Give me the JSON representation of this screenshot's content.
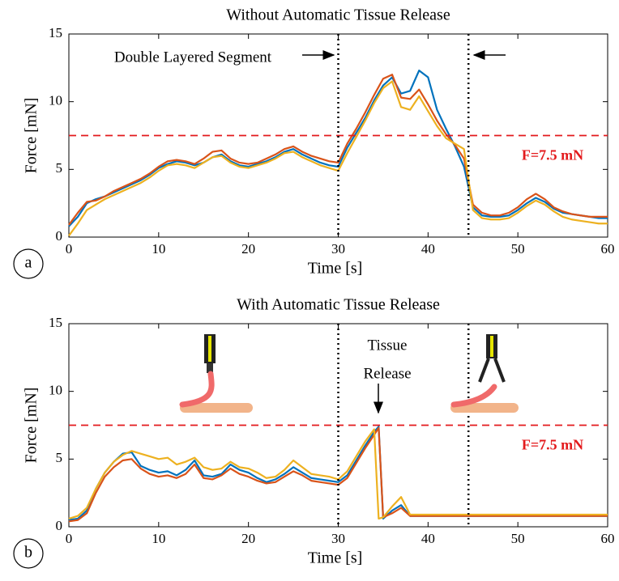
{
  "chart_data": [
    {
      "type": "line",
      "title": "Without Automatic Tissue Release",
      "panel_label": "a",
      "xlabel": "Time [s]",
      "ylabel": "Force [mN]",
      "x": [
        0,
        1,
        2,
        3,
        4,
        5,
        6,
        7,
        8,
        9,
        10,
        11,
        12,
        13,
        14,
        15,
        16,
        17,
        18,
        19,
        20,
        21,
        22,
        23,
        24,
        25,
        26,
        27,
        28,
        29,
        30,
        31,
        32,
        33,
        34,
        35,
        36,
        37,
        38,
        39,
        40,
        41,
        42,
        43,
        44,
        45,
        46,
        47,
        48,
        49,
        50,
        51,
        52,
        53,
        54,
        55,
        56,
        57,
        58,
        59,
        60
      ],
      "series": [
        {
          "color": "#0072bd",
          "values": [
            0.8,
            1.5,
            2.5,
            2.8,
            3.0,
            3.3,
            3.6,
            3.9,
            4.2,
            4.6,
            5.1,
            5.4,
            5.6,
            5.5,
            5.3,
            5.5,
            5.9,
            6.1,
            5.6,
            5.3,
            5.2,
            5.4,
            5.6,
            5.9,
            6.3,
            6.5,
            6.1,
            5.8,
            5.5,
            5.3,
            5.2,
            6.6,
            7.7,
            8.8,
            10.1,
            11.2,
            11.8,
            10.6,
            10.8,
            12.3,
            11.8,
            9.4,
            8.0,
            6.7,
            5.2,
            2.2,
            1.6,
            1.5,
            1.5,
            1.6,
            2.0,
            2.5,
            2.9,
            2.6,
            2.1,
            1.8,
            1.7,
            1.6,
            1.5,
            1.4,
            1.4
          ]
        },
        {
          "color": "#d95319",
          "values": [
            0.9,
            1.8,
            2.6,
            2.7,
            3.0,
            3.4,
            3.7,
            4.0,
            4.3,
            4.7,
            5.2,
            5.6,
            5.7,
            5.6,
            5.4,
            5.8,
            6.3,
            6.4,
            5.8,
            5.5,
            5.4,
            5.5,
            5.8,
            6.1,
            6.5,
            6.7,
            6.3,
            6.0,
            5.8,
            5.6,
            5.5,
            6.9,
            8.0,
            9.2,
            10.5,
            11.7,
            12.0,
            10.3,
            10.2,
            10.9,
            9.8,
            8.6,
            7.6,
            6.8,
            5.8,
            2.4,
            1.8,
            1.6,
            1.6,
            1.8,
            2.2,
            2.8,
            3.2,
            2.8,
            2.2,
            1.9,
            1.7,
            1.6,
            1.5,
            1.5,
            1.5
          ]
        },
        {
          "color": "#edb120",
          "values": [
            0.1,
            1.0,
            2.0,
            2.4,
            2.8,
            3.1,
            3.4,
            3.7,
            4.0,
            4.4,
            4.9,
            5.3,
            5.4,
            5.3,
            5.1,
            5.5,
            5.9,
            6.0,
            5.5,
            5.2,
            5.1,
            5.3,
            5.5,
            5.8,
            6.2,
            6.3,
            5.9,
            5.6,
            5.3,
            5.1,
            4.9,
            6.2,
            7.4,
            8.6,
            9.9,
            11.0,
            11.5,
            9.6,
            9.4,
            10.4,
            9.3,
            8.2,
            7.3,
            6.9,
            6.5,
            2.0,
            1.4,
            1.3,
            1.3,
            1.4,
            1.8,
            2.3,
            2.7,
            2.4,
            1.9,
            1.5,
            1.3,
            1.2,
            1.1,
            1.0,
            1.0
          ]
        }
      ],
      "hline": 7.5,
      "hline_color": "#e31a1c",
      "hline_label": "F=7.5 mN",
      "vlines": [
        30,
        44.5
      ],
      "annotations": [
        "Double Layered Segment"
      ],
      "xlim": [
        0,
        60
      ],
      "xticks": [
        0,
        10,
        20,
        30,
        40,
        50,
        60
      ],
      "ylim": [
        0,
        15
      ],
      "yticks": [
        0,
        5,
        10,
        15
      ]
    },
    {
      "type": "line",
      "title": "With Automatic Tissue Release",
      "panel_label": "b",
      "xlabel": "Time [s]",
      "ylabel": "Force [mN]",
      "x": [
        0,
        1,
        2,
        3,
        4,
        5,
        6,
        7,
        8,
        9,
        10,
        11,
        12,
        13,
        14,
        15,
        16,
        17,
        18,
        19,
        20,
        21,
        22,
        23,
        24,
        25,
        26,
        27,
        28,
        29,
        30,
        31,
        32,
        33,
        34,
        34.5,
        35,
        36,
        37,
        38,
        39,
        40,
        41,
        42,
        43,
        44,
        45,
        46,
        47,
        48,
        49,
        50,
        51,
        52,
        53,
        54,
        55,
        56,
        57,
        58,
        59,
        60
      ],
      "series": [
        {
          "color": "#0072bd",
          "values": [
            0.5,
            0.6,
            1.2,
            2.8,
            4.0,
            4.8,
            5.4,
            5.5,
            4.5,
            4.2,
            4.0,
            4.1,
            3.8,
            4.2,
            4.9,
            3.8,
            3.7,
            3.9,
            4.6,
            4.2,
            4.0,
            3.6,
            3.3,
            3.5,
            3.9,
            4.4,
            4.0,
            3.6,
            3.5,
            3.4,
            3.3,
            3.8,
            4.9,
            6.0,
            7.0,
            7.4,
            0.6,
            1.2,
            1.6,
            0.8,
            0.8,
            0.8,
            0.8,
            0.8,
            0.8,
            0.8,
            0.8,
            0.8,
            0.8,
            0.8,
            0.8,
            0.8,
            0.8,
            0.8,
            0.8,
            0.8,
            0.8,
            0.8,
            0.8,
            0.8,
            0.8,
            0.8
          ]
        },
        {
          "color": "#d95319",
          "values": [
            0.4,
            0.5,
            1.0,
            2.5,
            3.7,
            4.4,
            4.9,
            5.0,
            4.3,
            3.9,
            3.7,
            3.8,
            3.6,
            3.9,
            4.6,
            3.6,
            3.5,
            3.8,
            4.3,
            3.9,
            3.7,
            3.4,
            3.2,
            3.3,
            3.7,
            4.1,
            3.8,
            3.4,
            3.3,
            3.2,
            3.1,
            3.6,
            4.7,
            5.8,
            6.8,
            7.3,
            0.7,
            1.0,
            1.4,
            0.8,
            0.8,
            0.8,
            0.8,
            0.8,
            0.8,
            0.8,
            0.8,
            0.8,
            0.8,
            0.8,
            0.8,
            0.8,
            0.8,
            0.8,
            0.8,
            0.8,
            0.8,
            0.8,
            0.8,
            0.8,
            0.8,
            0.8
          ]
        },
        {
          "color": "#edb120",
          "values": [
            0.6,
            0.8,
            1.4,
            2.8,
            4.0,
            4.8,
            5.3,
            5.6,
            5.4,
            5.2,
            5.0,
            5.1,
            4.6,
            4.8,
            5.1,
            4.4,
            4.2,
            4.3,
            4.8,
            4.4,
            4.3,
            4.0,
            3.6,
            3.7,
            4.2,
            4.9,
            4.4,
            3.9,
            3.8,
            3.7,
            3.5,
            4.1,
            5.2,
            6.3,
            7.2,
            0.6,
            0.7,
            1.5,
            2.2,
            0.9,
            0.9,
            0.9,
            0.9,
            0.9,
            0.9,
            0.9,
            0.9,
            0.9,
            0.9,
            0.9,
            0.9,
            0.9,
            0.9,
            0.9,
            0.9,
            0.9,
            0.9,
            0.9,
            0.9,
            0.9,
            0.9,
            0.9
          ]
        }
      ],
      "hline": 7.5,
      "hline_color": "#e31a1c",
      "hline_label": "F=7.5 mN",
      "vlines": [
        30,
        44.5
      ],
      "annotations": [
        "Tissue",
        "Release"
      ],
      "xlim": [
        0,
        60
      ],
      "xticks": [
        0,
        10,
        20,
        30,
        40,
        50,
        60
      ],
      "ylim": [
        0,
        15
      ],
      "yticks": [
        0,
        5,
        10,
        15
      ]
    }
  ]
}
